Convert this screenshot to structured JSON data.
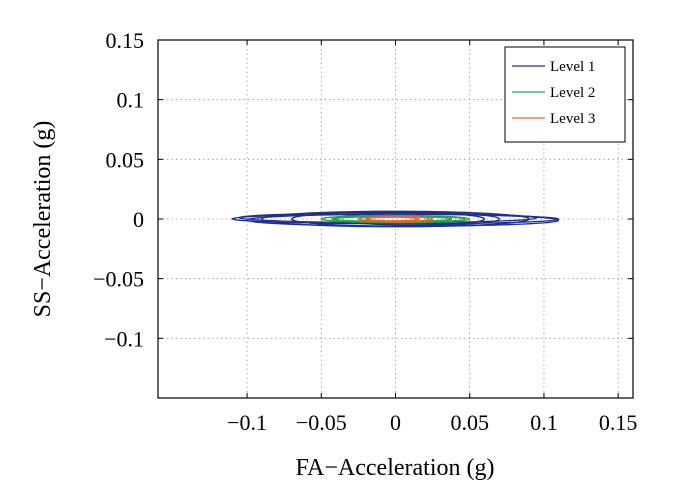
{
  "chart_data": {
    "type": "line",
    "title": "",
    "xlabel": "FA−Acceleration (g)",
    "ylabel": "SS−Acceleration (g)",
    "xlim": [
      -0.16,
      0.16
    ],
    "ylim": [
      -0.15,
      0.15
    ],
    "grid": true,
    "legend_position": "top-right",
    "x_ticks": [
      -0.1,
      -0.05,
      0,
      0.05,
      0.1,
      0.15
    ],
    "x_tick_labels": [
      "−0.1",
      "−0.05",
      "0",
      "0.05",
      "0.1",
      "0.15"
    ],
    "y_ticks": [
      0.15,
      0.1,
      0.05,
      0,
      -0.05,
      -0.1
    ],
    "y_tick_labels": [
      "0.15",
      "0.1",
      "0.05",
      "0",
      "−0.05",
      "−0.1"
    ],
    "series": [
      {
        "name": "Level 1",
        "color": "#1f2f8f",
        "loops": [
          {
            "cx": 0.0,
            "cy": 0.0,
            "rx": 0.11,
            "ry": 0.004,
            "rot": -1.5
          },
          {
            "cx": 0.005,
            "cy": -0.001,
            "rx": 0.105,
            "ry": 0.005,
            "rot": -1.0
          },
          {
            "cx": -0.005,
            "cy": 0.001,
            "rx": 0.1,
            "ry": 0.004,
            "rot": -1.2
          },
          {
            "cx": 0.0,
            "cy": 0.0,
            "rx": 0.09,
            "ry": 0.0065,
            "rot": -0.5
          },
          {
            "cx": 0.0,
            "cy": 0.0,
            "rx": 0.07,
            "ry": 0.006,
            "rot": 0.0
          },
          {
            "cx": 0.01,
            "cy": 0.0,
            "rx": 0.05,
            "ry": 0.005,
            "rot": 0.5
          }
        ]
      },
      {
        "name": "Level 2",
        "color": "#27a544",
        "loops": [
          {
            "cx": 0.0,
            "cy": 0.0,
            "rx": 0.05,
            "ry": 0.003,
            "rot": -1.0
          },
          {
            "cx": 0.002,
            "cy": 0.0,
            "rx": 0.045,
            "ry": 0.0025,
            "rot": -2.0
          },
          {
            "cx": -0.002,
            "cy": 0.0,
            "rx": 0.04,
            "ry": 0.002,
            "rot": 1.0
          }
        ]
      },
      {
        "name": "Level 3",
        "color": "#e8642c",
        "loops": [
          {
            "cx": 0.0,
            "cy": 0.0,
            "rx": 0.025,
            "ry": 0.002,
            "rot": 0.0
          },
          {
            "cx": 0.002,
            "cy": 0.0,
            "rx": 0.02,
            "ry": 0.0025,
            "rot": 2.0
          },
          {
            "cx": -0.002,
            "cy": 0.0,
            "rx": 0.018,
            "ry": 0.0015,
            "rot": -2.0
          }
        ]
      }
    ]
  }
}
